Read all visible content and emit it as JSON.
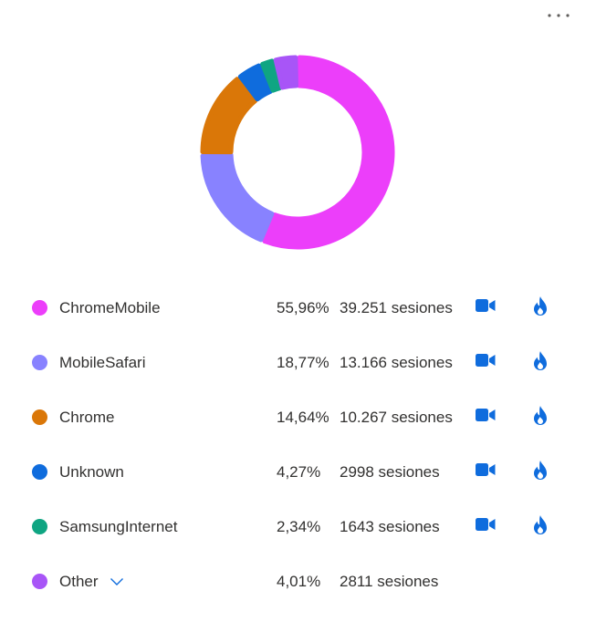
{
  "menu": {
    "icon": "more-horizontal-icon"
  },
  "colors": {
    "icon_blue": "#0F6CDD"
  },
  "chart_data": {
    "type": "pie",
    "variant": "donut",
    "series": [
      {
        "name": "ChromeMobile",
        "percent": "55,96%",
        "value": 55.96,
        "sessions": "39.251 sesiones",
        "color": "#EC3EFA",
        "actions": true
      },
      {
        "name": "MobileSafari",
        "percent": "18,77%",
        "value": 18.77,
        "sessions": "13.166 sesiones",
        "color": "#8882FF",
        "actions": true
      },
      {
        "name": "Chrome",
        "percent": "14,64%",
        "value": 14.64,
        "sessions": "10.267 sesiones",
        "color": "#DA7708",
        "actions": true
      },
      {
        "name": "Unknown",
        "percent": "4,27%",
        "value": 4.27,
        "sessions": "2998 sesiones",
        "color": "#0F6CDD",
        "actions": true
      },
      {
        "name": "SamsungInternet",
        "percent": "2,34%",
        "value": 2.34,
        "sessions": "1643 sesiones",
        "color": "#0FA582",
        "actions": true
      },
      {
        "name": "Other",
        "percent": "4,01%",
        "value": 4.01,
        "sessions": "2811 sesiones",
        "color": "#A855F7",
        "actions": false,
        "expandable": true
      }
    ]
  }
}
